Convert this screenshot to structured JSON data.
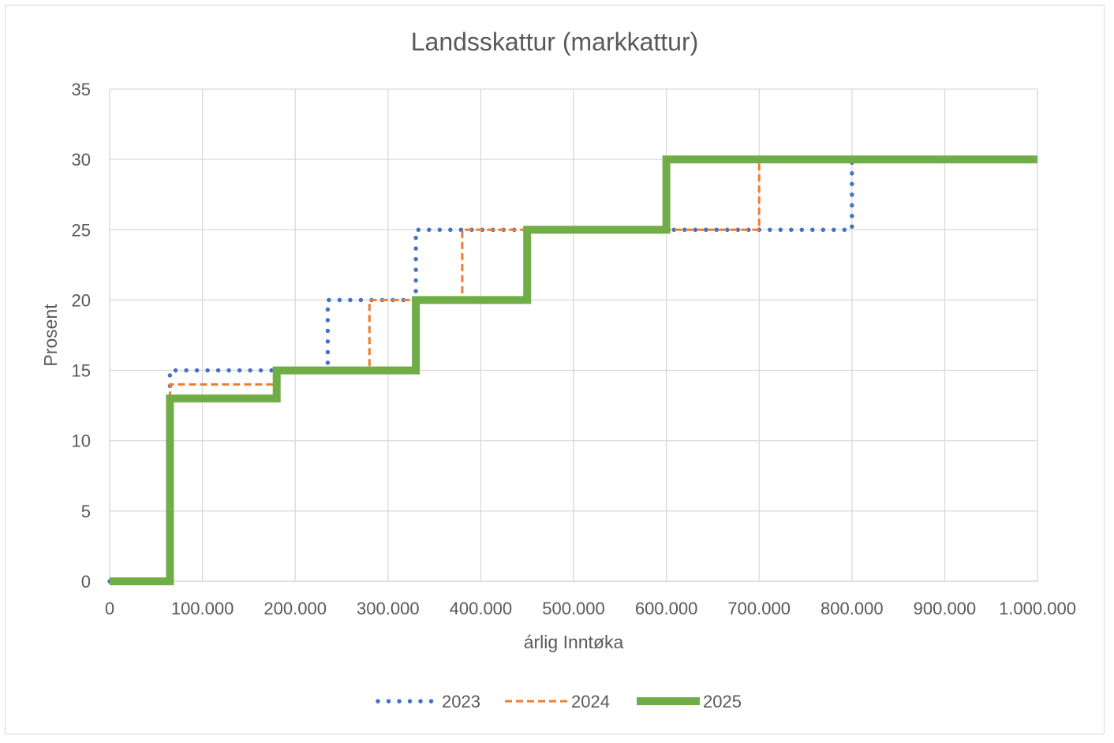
{
  "chart_data": {
    "type": "line",
    "step": true,
    "title": "Landsskattur (markkattur)",
    "xlabel": "árlig Inntøka",
    "ylabel": "Prosent",
    "xlim": [
      0,
      1000000
    ],
    "ylim": [
      0,
      35
    ],
    "x_ticks": [
      0,
      100000,
      200000,
      300000,
      400000,
      500000,
      600000,
      700000,
      800000,
      900000,
      1000000
    ],
    "x_tick_labels": [
      "0",
      "100.000",
      "200.000",
      "300.000",
      "400.000",
      "500.000",
      "600.000",
      "700.000",
      "800.000",
      "900.000",
      "1.000.000"
    ],
    "y_ticks": [
      0,
      5,
      10,
      15,
      20,
      25,
      30,
      35
    ],
    "y_tick_labels": [
      "0",
      "5",
      "10",
      "15",
      "20",
      "25",
      "30",
      "35"
    ],
    "grid": true,
    "legend_position": "bottom",
    "series": [
      {
        "name": "2023",
        "style": "dotted",
        "color": "#4472c4",
        "points": [
          [
            0,
            0
          ],
          [
            65000,
            0
          ],
          [
            65000,
            15
          ],
          [
            235000,
            15
          ],
          [
            235000,
            20
          ],
          [
            330000,
            20
          ],
          [
            330000,
            25
          ],
          [
            800000,
            25
          ],
          [
            800000,
            30
          ],
          [
            1000000,
            30
          ]
        ]
      },
      {
        "name": "2024",
        "style": "dashed",
        "color": "#ed7d31",
        "points": [
          [
            0,
            0
          ],
          [
            65000,
            0
          ],
          [
            65000,
            14
          ],
          [
            180000,
            14
          ],
          [
            180000,
            15
          ],
          [
            280000,
            15
          ],
          [
            280000,
            20
          ],
          [
            380000,
            20
          ],
          [
            380000,
            25
          ],
          [
            700000,
            25
          ],
          [
            700000,
            30
          ],
          [
            1000000,
            30
          ]
        ]
      },
      {
        "name": "2025",
        "style": "solid",
        "color": "#70ad47",
        "points": [
          [
            0,
            0
          ],
          [
            65000,
            0
          ],
          [
            65000,
            13
          ],
          [
            180000,
            13
          ],
          [
            180000,
            15
          ],
          [
            330000,
            15
          ],
          [
            330000,
            20
          ],
          [
            450000,
            20
          ],
          [
            450000,
            25
          ],
          [
            600000,
            25
          ],
          [
            600000,
            30
          ],
          [
            1000000,
            30
          ]
        ]
      }
    ]
  }
}
